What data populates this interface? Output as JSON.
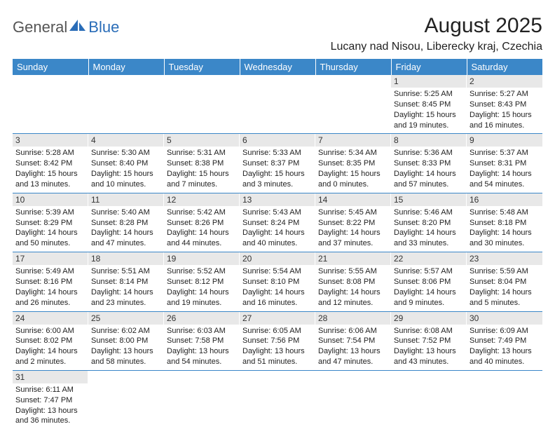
{
  "logo": {
    "part1": "General",
    "part2": "Blue"
  },
  "title": "August 2025",
  "location": "Lucany nad Nisou, Liberecky kraj, Czechia",
  "colors": {
    "header_bg": "#3b87c8",
    "header_text": "#ffffff",
    "daynum_bg": "#e8e8e8",
    "row_divider": "#3b87c8",
    "logo_gray": "#555555",
    "logo_blue": "#2a6db8"
  },
  "typography": {
    "title_fontsize": 30,
    "location_fontsize": 16,
    "header_fontsize": 13,
    "daynum_fontsize": 12,
    "body_fontsize": 11
  },
  "dayHeaders": [
    "Sunday",
    "Monday",
    "Tuesday",
    "Wednesday",
    "Thursday",
    "Friday",
    "Saturday"
  ],
  "weeks": [
    [
      {
        "empty": true
      },
      {
        "empty": true
      },
      {
        "empty": true
      },
      {
        "empty": true
      },
      {
        "empty": true
      },
      {
        "num": "1",
        "sunrise": "Sunrise: 5:25 AM",
        "sunset": "Sunset: 8:45 PM",
        "daylight": "Daylight: 15 hours and 19 minutes."
      },
      {
        "num": "2",
        "sunrise": "Sunrise: 5:27 AM",
        "sunset": "Sunset: 8:43 PM",
        "daylight": "Daylight: 15 hours and 16 minutes."
      }
    ],
    [
      {
        "num": "3",
        "sunrise": "Sunrise: 5:28 AM",
        "sunset": "Sunset: 8:42 PM",
        "daylight": "Daylight: 15 hours and 13 minutes."
      },
      {
        "num": "4",
        "sunrise": "Sunrise: 5:30 AM",
        "sunset": "Sunset: 8:40 PM",
        "daylight": "Daylight: 15 hours and 10 minutes."
      },
      {
        "num": "5",
        "sunrise": "Sunrise: 5:31 AM",
        "sunset": "Sunset: 8:38 PM",
        "daylight": "Daylight: 15 hours and 7 minutes."
      },
      {
        "num": "6",
        "sunrise": "Sunrise: 5:33 AM",
        "sunset": "Sunset: 8:37 PM",
        "daylight": "Daylight: 15 hours and 3 minutes."
      },
      {
        "num": "7",
        "sunrise": "Sunrise: 5:34 AM",
        "sunset": "Sunset: 8:35 PM",
        "daylight": "Daylight: 15 hours and 0 minutes."
      },
      {
        "num": "8",
        "sunrise": "Sunrise: 5:36 AM",
        "sunset": "Sunset: 8:33 PM",
        "daylight": "Daylight: 14 hours and 57 minutes."
      },
      {
        "num": "9",
        "sunrise": "Sunrise: 5:37 AM",
        "sunset": "Sunset: 8:31 PM",
        "daylight": "Daylight: 14 hours and 54 minutes."
      }
    ],
    [
      {
        "num": "10",
        "sunrise": "Sunrise: 5:39 AM",
        "sunset": "Sunset: 8:29 PM",
        "daylight": "Daylight: 14 hours and 50 minutes."
      },
      {
        "num": "11",
        "sunrise": "Sunrise: 5:40 AM",
        "sunset": "Sunset: 8:28 PM",
        "daylight": "Daylight: 14 hours and 47 minutes."
      },
      {
        "num": "12",
        "sunrise": "Sunrise: 5:42 AM",
        "sunset": "Sunset: 8:26 PM",
        "daylight": "Daylight: 14 hours and 44 minutes."
      },
      {
        "num": "13",
        "sunrise": "Sunrise: 5:43 AM",
        "sunset": "Sunset: 8:24 PM",
        "daylight": "Daylight: 14 hours and 40 minutes."
      },
      {
        "num": "14",
        "sunrise": "Sunrise: 5:45 AM",
        "sunset": "Sunset: 8:22 PM",
        "daylight": "Daylight: 14 hours and 37 minutes."
      },
      {
        "num": "15",
        "sunrise": "Sunrise: 5:46 AM",
        "sunset": "Sunset: 8:20 PM",
        "daylight": "Daylight: 14 hours and 33 minutes."
      },
      {
        "num": "16",
        "sunrise": "Sunrise: 5:48 AM",
        "sunset": "Sunset: 8:18 PM",
        "daylight": "Daylight: 14 hours and 30 minutes."
      }
    ],
    [
      {
        "num": "17",
        "sunrise": "Sunrise: 5:49 AM",
        "sunset": "Sunset: 8:16 PM",
        "daylight": "Daylight: 14 hours and 26 minutes."
      },
      {
        "num": "18",
        "sunrise": "Sunrise: 5:51 AM",
        "sunset": "Sunset: 8:14 PM",
        "daylight": "Daylight: 14 hours and 23 minutes."
      },
      {
        "num": "19",
        "sunrise": "Sunrise: 5:52 AM",
        "sunset": "Sunset: 8:12 PM",
        "daylight": "Daylight: 14 hours and 19 minutes."
      },
      {
        "num": "20",
        "sunrise": "Sunrise: 5:54 AM",
        "sunset": "Sunset: 8:10 PM",
        "daylight": "Daylight: 14 hours and 16 minutes."
      },
      {
        "num": "21",
        "sunrise": "Sunrise: 5:55 AM",
        "sunset": "Sunset: 8:08 PM",
        "daylight": "Daylight: 14 hours and 12 minutes."
      },
      {
        "num": "22",
        "sunrise": "Sunrise: 5:57 AM",
        "sunset": "Sunset: 8:06 PM",
        "daylight": "Daylight: 14 hours and 9 minutes."
      },
      {
        "num": "23",
        "sunrise": "Sunrise: 5:59 AM",
        "sunset": "Sunset: 8:04 PM",
        "daylight": "Daylight: 14 hours and 5 minutes."
      }
    ],
    [
      {
        "num": "24",
        "sunrise": "Sunrise: 6:00 AM",
        "sunset": "Sunset: 8:02 PM",
        "daylight": "Daylight: 14 hours and 2 minutes."
      },
      {
        "num": "25",
        "sunrise": "Sunrise: 6:02 AM",
        "sunset": "Sunset: 8:00 PM",
        "daylight": "Daylight: 13 hours and 58 minutes."
      },
      {
        "num": "26",
        "sunrise": "Sunrise: 6:03 AM",
        "sunset": "Sunset: 7:58 PM",
        "daylight": "Daylight: 13 hours and 54 minutes."
      },
      {
        "num": "27",
        "sunrise": "Sunrise: 6:05 AM",
        "sunset": "Sunset: 7:56 PM",
        "daylight": "Daylight: 13 hours and 51 minutes."
      },
      {
        "num": "28",
        "sunrise": "Sunrise: 6:06 AM",
        "sunset": "Sunset: 7:54 PM",
        "daylight": "Daylight: 13 hours and 47 minutes."
      },
      {
        "num": "29",
        "sunrise": "Sunrise: 6:08 AM",
        "sunset": "Sunset: 7:52 PM",
        "daylight": "Daylight: 13 hours and 43 minutes."
      },
      {
        "num": "30",
        "sunrise": "Sunrise: 6:09 AM",
        "sunset": "Sunset: 7:49 PM",
        "daylight": "Daylight: 13 hours and 40 minutes."
      }
    ],
    [
      {
        "num": "31",
        "sunrise": "Sunrise: 6:11 AM",
        "sunset": "Sunset: 7:47 PM",
        "daylight": "Daylight: 13 hours and 36 minutes."
      },
      {
        "empty": true
      },
      {
        "empty": true
      },
      {
        "empty": true
      },
      {
        "empty": true
      },
      {
        "empty": true
      },
      {
        "empty": true
      }
    ]
  ]
}
